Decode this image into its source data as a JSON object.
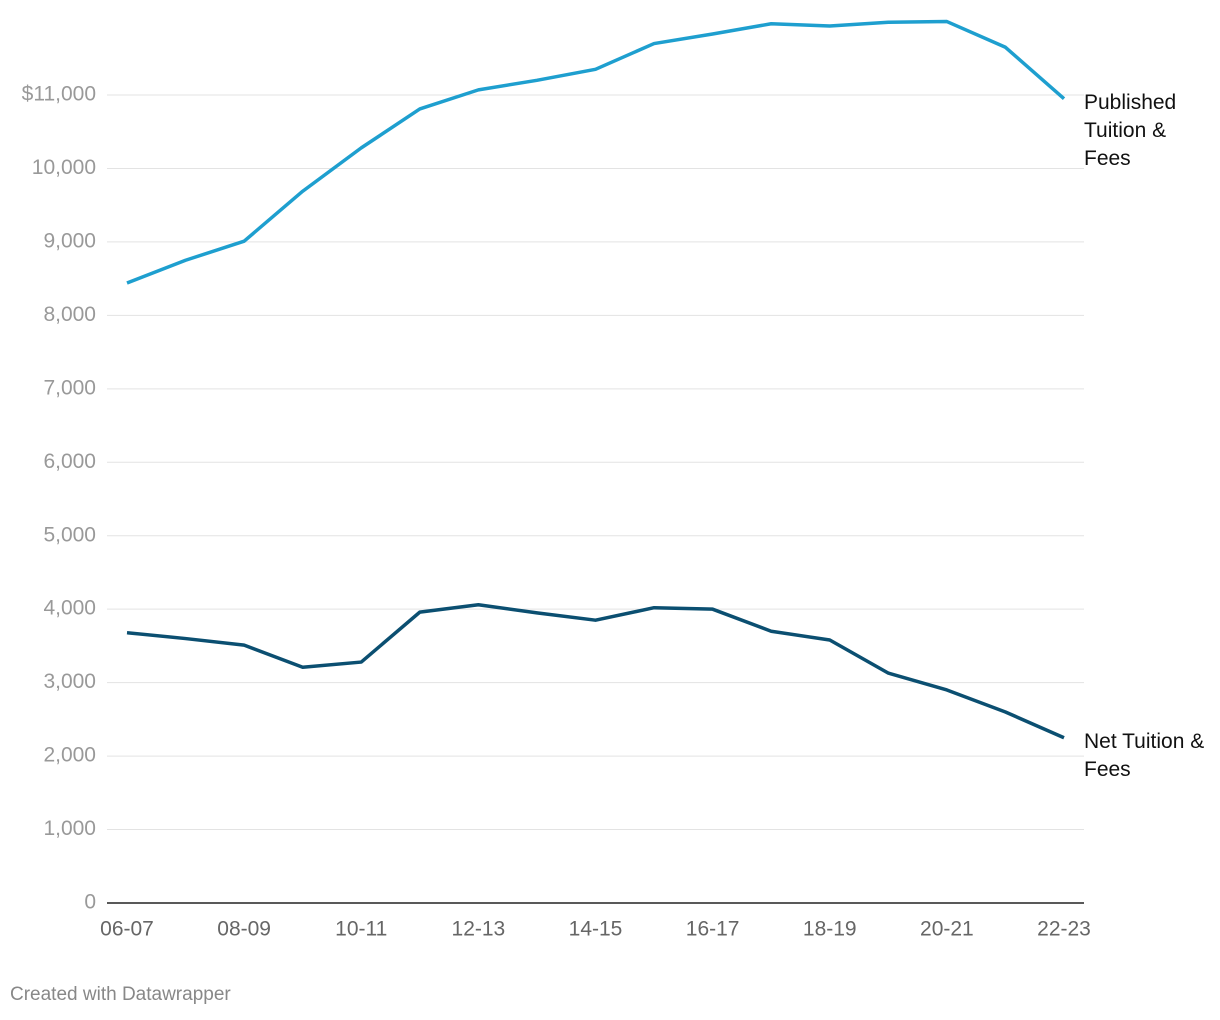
{
  "chart_data": {
    "type": "line",
    "categories": [
      "06-07",
      null,
      "08-09",
      null,
      "10-11",
      null,
      "12-13",
      null,
      "14-15",
      null,
      "16-17",
      null,
      "18-19",
      null,
      "20-21",
      null,
      "22-23"
    ],
    "series": [
      {
        "name": "Published Tuition & Fees",
        "color": "#1e9fcf",
        "values": [
          8440,
          8750,
          9010,
          9690,
          10280,
          10810,
          11070,
          11200,
          11350,
          11700,
          11830,
          11970,
          11940,
          11990,
          12000,
          11650,
          10950
        ]
      },
      {
        "name": "Net Tuition & Fees",
        "color": "#0b4f71",
        "values": [
          3680,
          3600,
          3510,
          3210,
          3280,
          3960,
          4060,
          3950,
          3850,
          4020,
          4000,
          3700,
          3580,
          3130,
          2900,
          2600,
          2250
        ]
      }
    ],
    "ylim": [
      0,
      12100
    ],
    "yticks": [
      0,
      {
        "value": 1000,
        "label": "1,000"
      },
      {
        "value": 2000,
        "label": "2,000"
      },
      {
        "value": 3000,
        "label": "3,000"
      },
      {
        "value": 4000,
        "label": "4,000"
      },
      {
        "value": 5000,
        "label": "5,000"
      },
      {
        "value": 6000,
        "label": "6,000"
      },
      {
        "value": 7000,
        "label": "7,000"
      },
      {
        "value": 8000,
        "label": "8,000"
      },
      {
        "value": 9000,
        "label": "9,000"
      },
      {
        "value": 10000,
        "label": "10,000"
      },
      {
        "value": 11000,
        "label": "$11,000"
      }
    ],
    "grid": true,
    "credit": "Created with Datawrapper"
  }
}
